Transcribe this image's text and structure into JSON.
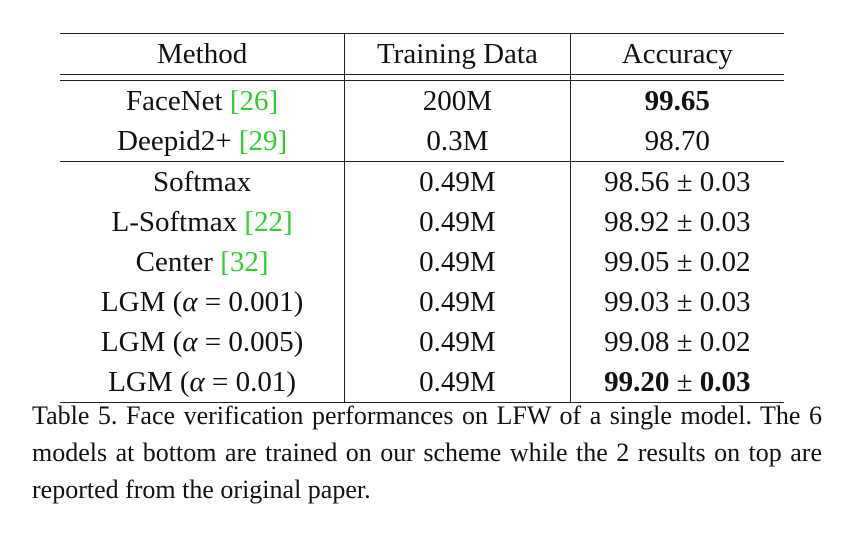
{
  "table": {
    "headers": [
      "Method",
      "Training Data",
      "Accuracy"
    ],
    "group1": [
      {
        "method": "FaceNet ",
        "cite": "[26]",
        "data": "200M",
        "acc": "99.65",
        "acc_bold": true
      },
      {
        "method": "Deepid2+ ",
        "cite": "[29]",
        "data": "0.3M",
        "acc": "98.70",
        "acc_bold": false
      }
    ],
    "group2": [
      {
        "method": "Softmax",
        "cite": "",
        "data": "0.49M",
        "acc": "98.56",
        "pm": "±",
        "std": "0.03",
        "bold": false
      },
      {
        "method": "L-Softmax ",
        "cite": "[22]",
        "data": "0.49M",
        "acc": "98.92",
        "pm": "±",
        "std": "0.03",
        "bold": false
      },
      {
        "method": "Center ",
        "cite": "[32]",
        "data": "0.49M",
        "acc": "99.05",
        "pm": "±",
        "std": "0.02",
        "bold": false
      },
      {
        "method": "LGM (",
        "alpha": "α",
        "eq": " = ",
        "val": "0.001",
        "close": ")",
        "data": "0.49M",
        "acc": "99.03",
        "pm": "±",
        "std": "0.03",
        "bold": false
      },
      {
        "method": "LGM (",
        "alpha": "α",
        "eq": " = ",
        "val": "0.005",
        "close": ")",
        "data": "0.49M",
        "acc": "99.08",
        "pm": "±",
        "std": "0.02",
        "bold": false
      },
      {
        "method": "LGM (",
        "alpha": "α",
        "eq": " = ",
        "val": "0.01",
        "close": ")",
        "data": "0.49M",
        "acc": "99.20",
        "pm": "±",
        "std": "0.03",
        "bold": true
      }
    ]
  },
  "caption": "Table 5. Face verification performances on LFW of a single model. The 6 models at bottom are trained on our scheme while the 2 results on top are reported from the original paper."
}
